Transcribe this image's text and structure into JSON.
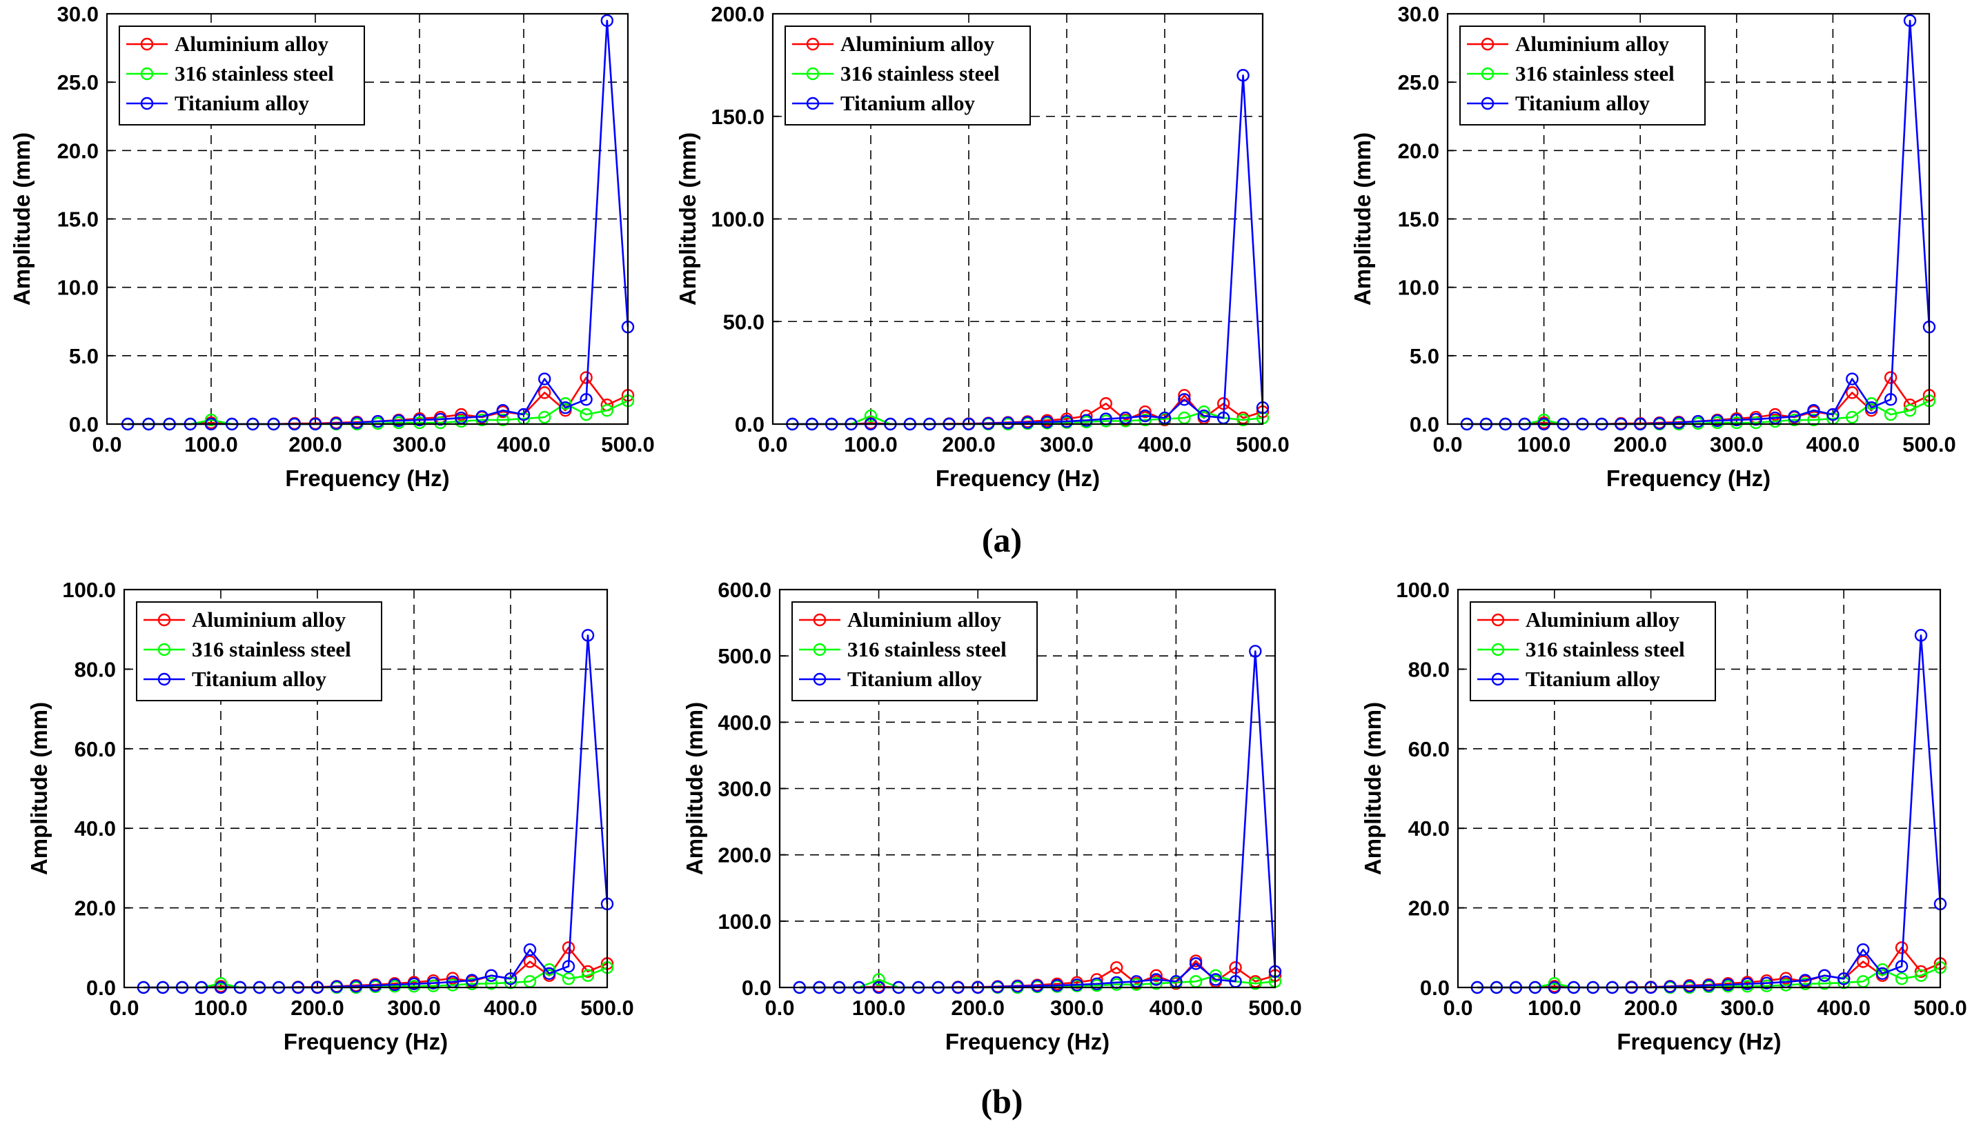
{
  "captions": {
    "a": "(a)",
    "b": "(b)"
  },
  "colors": {
    "Aluminium alloy": "#ff0000",
    "316 stainless steel": "#00ff00",
    "Titanium alloy": "#0000ff"
  },
  "chart_data": [
    {
      "id": "a1",
      "type": "line",
      "row": "a",
      "xlabel": "Frequency (Hz)",
      "ylabel": "Amplitude (mm)",
      "xlim": [
        0,
        500
      ],
      "ylim": [
        0,
        30
      ],
      "xticks": [
        0,
        100,
        200,
        300,
        400,
        500
      ],
      "xtick_labels": [
        "0.0",
        "100.0",
        "200.0",
        "300.0",
        "400.0",
        "500.0"
      ],
      "yticks": [
        0,
        5,
        10,
        15,
        20,
        25,
        30
      ],
      "ytick_labels": [
        "0.0",
        "5.0",
        "10.0",
        "15.0",
        "20.0",
        "25.0",
        "30.0"
      ],
      "grid": true,
      "legend_position": "top-left",
      "x": [
        20,
        40,
        60,
        80,
        100,
        120,
        140,
        160,
        180,
        200,
        220,
        240,
        260,
        280,
        300,
        320,
        340,
        360,
        380,
        400,
        420,
        440,
        460,
        480,
        500
      ],
      "series": [
        {
          "name": "Aluminium alloy",
          "values": [
            0,
            0,
            0,
            0,
            0.1,
            0,
            0,
            0,
            0.05,
            0.05,
            0.1,
            0.15,
            0.2,
            0.3,
            0.4,
            0.5,
            0.7,
            0.5,
            0.9,
            0.7,
            2.3,
            1.0,
            3.4,
            1.4,
            2.1
          ]
        },
        {
          "name": "316 stainless steel",
          "values": [
            0,
            0,
            0,
            0,
            0.3,
            0,
            0,
            0,
            0,
            0,
            0,
            0,
            0.05,
            0.1,
            0.1,
            0.1,
            0.2,
            0.3,
            0.3,
            0.4,
            0.5,
            1.5,
            0.7,
            1.0,
            1.7
          ]
        },
        {
          "name": "Titanium alloy",
          "values": [
            0,
            0,
            0,
            0,
            0,
            0,
            0,
            0,
            0,
            0,
            0.05,
            0.1,
            0.2,
            0.25,
            0.3,
            0.35,
            0.45,
            0.55,
            1.0,
            0.7,
            3.3,
            1.2,
            1.8,
            29.5,
            7.1
          ]
        }
      ]
    },
    {
      "id": "a2",
      "type": "line",
      "row": "a",
      "xlabel": "Frequency (Hz)",
      "ylabel": "Amplitude (mm)",
      "xlim": [
        0,
        500
      ],
      "ylim": [
        0,
        200
      ],
      "xticks": [
        0,
        100,
        200,
        300,
        400,
        500
      ],
      "xtick_labels": [
        "0.0",
        "100.0",
        "200.0",
        "300.0",
        "400.0",
        "500.0"
      ],
      "yticks": [
        0,
        50,
        100,
        150,
        200
      ],
      "ytick_labels": [
        "0.0",
        "50.0",
        "100.0",
        "150.0",
        "200.0"
      ],
      "grid": true,
      "legend_position": "top-left",
      "x": [
        20,
        40,
        60,
        80,
        100,
        120,
        140,
        160,
        180,
        200,
        220,
        240,
        260,
        280,
        300,
        320,
        340,
        360,
        380,
        400,
        420,
        440,
        460,
        480,
        500
      ],
      "series": [
        {
          "name": "Aluminium alloy",
          "values": [
            0,
            0,
            0,
            0,
            0.5,
            0,
            0,
            0,
            0.2,
            0.2,
            0.5,
            0.8,
            1.2,
            1.8,
            2.5,
            4,
            10,
            2,
            6,
            2,
            14,
            3,
            10,
            3,
            6
          ]
        },
        {
          "name": "316 stainless steel",
          "values": [
            0,
            0,
            0,
            0,
            4,
            0,
            0,
            0,
            0,
            0,
            0,
            0,
            0.3,
            0.5,
            0.8,
            1,
            1.5,
            1.5,
            2,
            2.5,
            3,
            6,
            3,
            2,
            3
          ]
        },
        {
          "name": "Titanium alloy",
          "values": [
            0,
            0,
            0,
            0,
            0,
            0,
            0,
            0,
            0,
            0,
            0.3,
            0.6,
            0.8,
            1,
            1.3,
            1.8,
            2.5,
            3,
            4,
            3,
            12,
            4,
            3,
            170,
            8
          ]
        }
      ]
    },
    {
      "id": "a3",
      "type": "line",
      "row": "a",
      "xlabel": "Frequency (Hz)",
      "ylabel": "Amplitude (mm)",
      "xlim": [
        0,
        500
      ],
      "ylim": [
        0,
        30
      ],
      "xticks": [
        0,
        100,
        200,
        300,
        400,
        500
      ],
      "xtick_labels": [
        "0.0",
        "100.0",
        "200.0",
        "300.0",
        "400.0",
        "500.0"
      ],
      "yticks": [
        0,
        5,
        10,
        15,
        20,
        25,
        30
      ],
      "ytick_labels": [
        "0.0",
        "5.0",
        "10.0",
        "15.0",
        "20.0",
        "25.0",
        "30.0"
      ],
      "grid": true,
      "legend_position": "top-left",
      "x": [
        20,
        40,
        60,
        80,
        100,
        120,
        140,
        160,
        180,
        200,
        220,
        240,
        260,
        280,
        300,
        320,
        340,
        360,
        380,
        400,
        420,
        440,
        460,
        480,
        500
      ],
      "series": [
        {
          "name": "Aluminium alloy",
          "values": [
            0,
            0,
            0,
            0,
            0.1,
            0,
            0,
            0,
            0.05,
            0.05,
            0.1,
            0.15,
            0.2,
            0.3,
            0.4,
            0.5,
            0.7,
            0.5,
            0.9,
            0.7,
            2.3,
            1.0,
            3.4,
            1.4,
            2.1
          ]
        },
        {
          "name": "316 stainless steel",
          "values": [
            0,
            0,
            0,
            0,
            0.3,
            0,
            0,
            0,
            0,
            0,
            0,
            0,
            0.05,
            0.1,
            0.1,
            0.1,
            0.2,
            0.3,
            0.3,
            0.4,
            0.5,
            1.5,
            0.7,
            1.0,
            1.7
          ]
        },
        {
          "name": "Titanium alloy",
          "values": [
            0,
            0,
            0,
            0,
            0,
            0,
            0,
            0,
            0,
            0,
            0.05,
            0.1,
            0.2,
            0.25,
            0.3,
            0.35,
            0.45,
            0.55,
            1.0,
            0.7,
            3.3,
            1.2,
            1.8,
            29.5,
            7.1
          ]
        }
      ]
    },
    {
      "id": "b1",
      "type": "line",
      "row": "b",
      "xlabel": "Frequency (Hz)",
      "ylabel": "Amplitude (mm)",
      "xlim": [
        0,
        500
      ],
      "ylim": [
        0,
        100
      ],
      "xticks": [
        0,
        100,
        200,
        300,
        400,
        500
      ],
      "xtick_labels": [
        "0.0",
        "100.0",
        "200.0",
        "300.0",
        "400.0",
        "500.0"
      ],
      "yticks": [
        0,
        20,
        40,
        60,
        80,
        100
      ],
      "ytick_labels": [
        "0.0",
        "20.0",
        "40.0",
        "60.0",
        "80.0",
        "100.0"
      ],
      "grid": true,
      "legend_position": "top-left",
      "x": [
        20,
        40,
        60,
        80,
        100,
        120,
        140,
        160,
        180,
        200,
        220,
        240,
        260,
        280,
        300,
        320,
        340,
        360,
        380,
        400,
        420,
        440,
        460,
        480,
        500
      ],
      "series": [
        {
          "name": "Aluminium alloy",
          "values": [
            0,
            0,
            0,
            0,
            0.3,
            0,
            0,
            0,
            0.1,
            0.1,
            0.3,
            0.5,
            0.7,
            1,
            1.3,
            1.7,
            2.3,
            1.5,
            3,
            2.2,
            6.5,
            3,
            10,
            4,
            6
          ]
        },
        {
          "name": "316 stainless steel",
          "values": [
            0,
            0,
            0,
            0,
            1,
            0,
            0,
            0,
            0,
            0,
            0,
            0,
            0.2,
            0.3,
            0.3,
            0.4,
            0.6,
            0.9,
            1,
            1.2,
            1.5,
            4.5,
            2.2,
            3,
            5
          ]
        },
        {
          "name": "Titanium alloy",
          "values": [
            0,
            0,
            0,
            0,
            0,
            0,
            0,
            0,
            0,
            0,
            0.2,
            0.3,
            0.5,
            0.7,
            0.9,
            1.1,
            1.4,
            1.8,
            3,
            2.2,
            9.5,
            3.5,
            5.3,
            88.5,
            21
          ]
        }
      ]
    },
    {
      "id": "b2",
      "type": "line",
      "row": "b",
      "xlabel": "Frequency (Hz)",
      "ylabel": "Amplitude (mm)",
      "xlim": [
        0,
        500
      ],
      "ylim": [
        0,
        600
      ],
      "xticks": [
        0,
        100,
        200,
        300,
        400,
        500
      ],
      "xtick_labels": [
        "0.0",
        "100.0",
        "200.0",
        "300.0",
        "400.0",
        "500.0"
      ],
      "yticks": [
        0,
        100,
        200,
        300,
        400,
        500,
        600
      ],
      "ytick_labels": [
        "0.0",
        "100.0",
        "200.0",
        "300.0",
        "400.0",
        "500.0",
        "600.0"
      ],
      "grid": true,
      "legend_position": "top-left",
      "x": [
        20,
        40,
        60,
        80,
        100,
        120,
        140,
        160,
        180,
        200,
        220,
        240,
        260,
        280,
        300,
        320,
        340,
        360,
        380,
        400,
        420,
        440,
        460,
        480,
        500
      ],
      "series": [
        {
          "name": "Aluminium alloy",
          "values": [
            0,
            0,
            0,
            0,
            1.5,
            0,
            0,
            0,
            0.6,
            0.6,
            1.5,
            2.4,
            3.6,
            5.4,
            7.5,
            12,
            30,
            6,
            18,
            6,
            40,
            9,
            30,
            9,
            18
          ]
        },
        {
          "name": "316 stainless steel",
          "values": [
            0,
            0,
            0,
            0,
            12,
            0,
            0,
            0,
            0,
            0,
            0,
            0,
            1,
            1.5,
            2.4,
            3,
            4.5,
            4.5,
            6,
            7.5,
            9,
            18,
            9,
            6,
            9
          ]
        },
        {
          "name": "Titanium alloy",
          "values": [
            0,
            0,
            0,
            0,
            0,
            0,
            0,
            0,
            0,
            0,
            0.9,
            1.8,
            2.4,
            3,
            4,
            5.4,
            7.5,
            9,
            12,
            9,
            36,
            12,
            9,
            507,
            24
          ]
        }
      ]
    },
    {
      "id": "b3",
      "type": "line",
      "row": "b",
      "xlabel": "Frequency (Hz)",
      "ylabel": "Amplitude (mm)",
      "xlim": [
        0,
        500
      ],
      "ylim": [
        0,
        100
      ],
      "xticks": [
        0,
        100,
        200,
        300,
        400,
        500
      ],
      "xtick_labels": [
        "0.0",
        "100.0",
        "200.0",
        "300.0",
        "400.0",
        "500.0"
      ],
      "yticks": [
        0,
        20,
        40,
        60,
        80,
        100
      ],
      "ytick_labels": [
        "0.0",
        "20.0",
        "40.0",
        "60.0",
        "80.0",
        "100.0"
      ],
      "grid": true,
      "legend_position": "top-left",
      "x": [
        20,
        40,
        60,
        80,
        100,
        120,
        140,
        160,
        180,
        200,
        220,
        240,
        260,
        280,
        300,
        320,
        340,
        360,
        380,
        400,
        420,
        440,
        460,
        480,
        500
      ],
      "series": [
        {
          "name": "Aluminium alloy",
          "values": [
            0,
            0,
            0,
            0,
            0.3,
            0,
            0,
            0,
            0.1,
            0.1,
            0.3,
            0.5,
            0.7,
            1,
            1.3,
            1.7,
            2.3,
            1.5,
            3,
            2.2,
            6.5,
            3,
            10,
            4,
            6
          ]
        },
        {
          "name": "316 stainless steel",
          "values": [
            0,
            0,
            0,
            0,
            1,
            0,
            0,
            0,
            0,
            0,
            0,
            0,
            0.2,
            0.3,
            0.3,
            0.4,
            0.6,
            0.9,
            1,
            1.2,
            1.5,
            4.5,
            2.2,
            3,
            5
          ]
        },
        {
          "name": "Titanium alloy",
          "values": [
            0,
            0,
            0,
            0,
            0,
            0,
            0,
            0,
            0,
            0,
            0.2,
            0.3,
            0.5,
            0.7,
            0.9,
            1.1,
            1.4,
            1.8,
            3,
            2.2,
            9.5,
            3.5,
            5.3,
            88.5,
            21
          ]
        }
      ]
    }
  ]
}
